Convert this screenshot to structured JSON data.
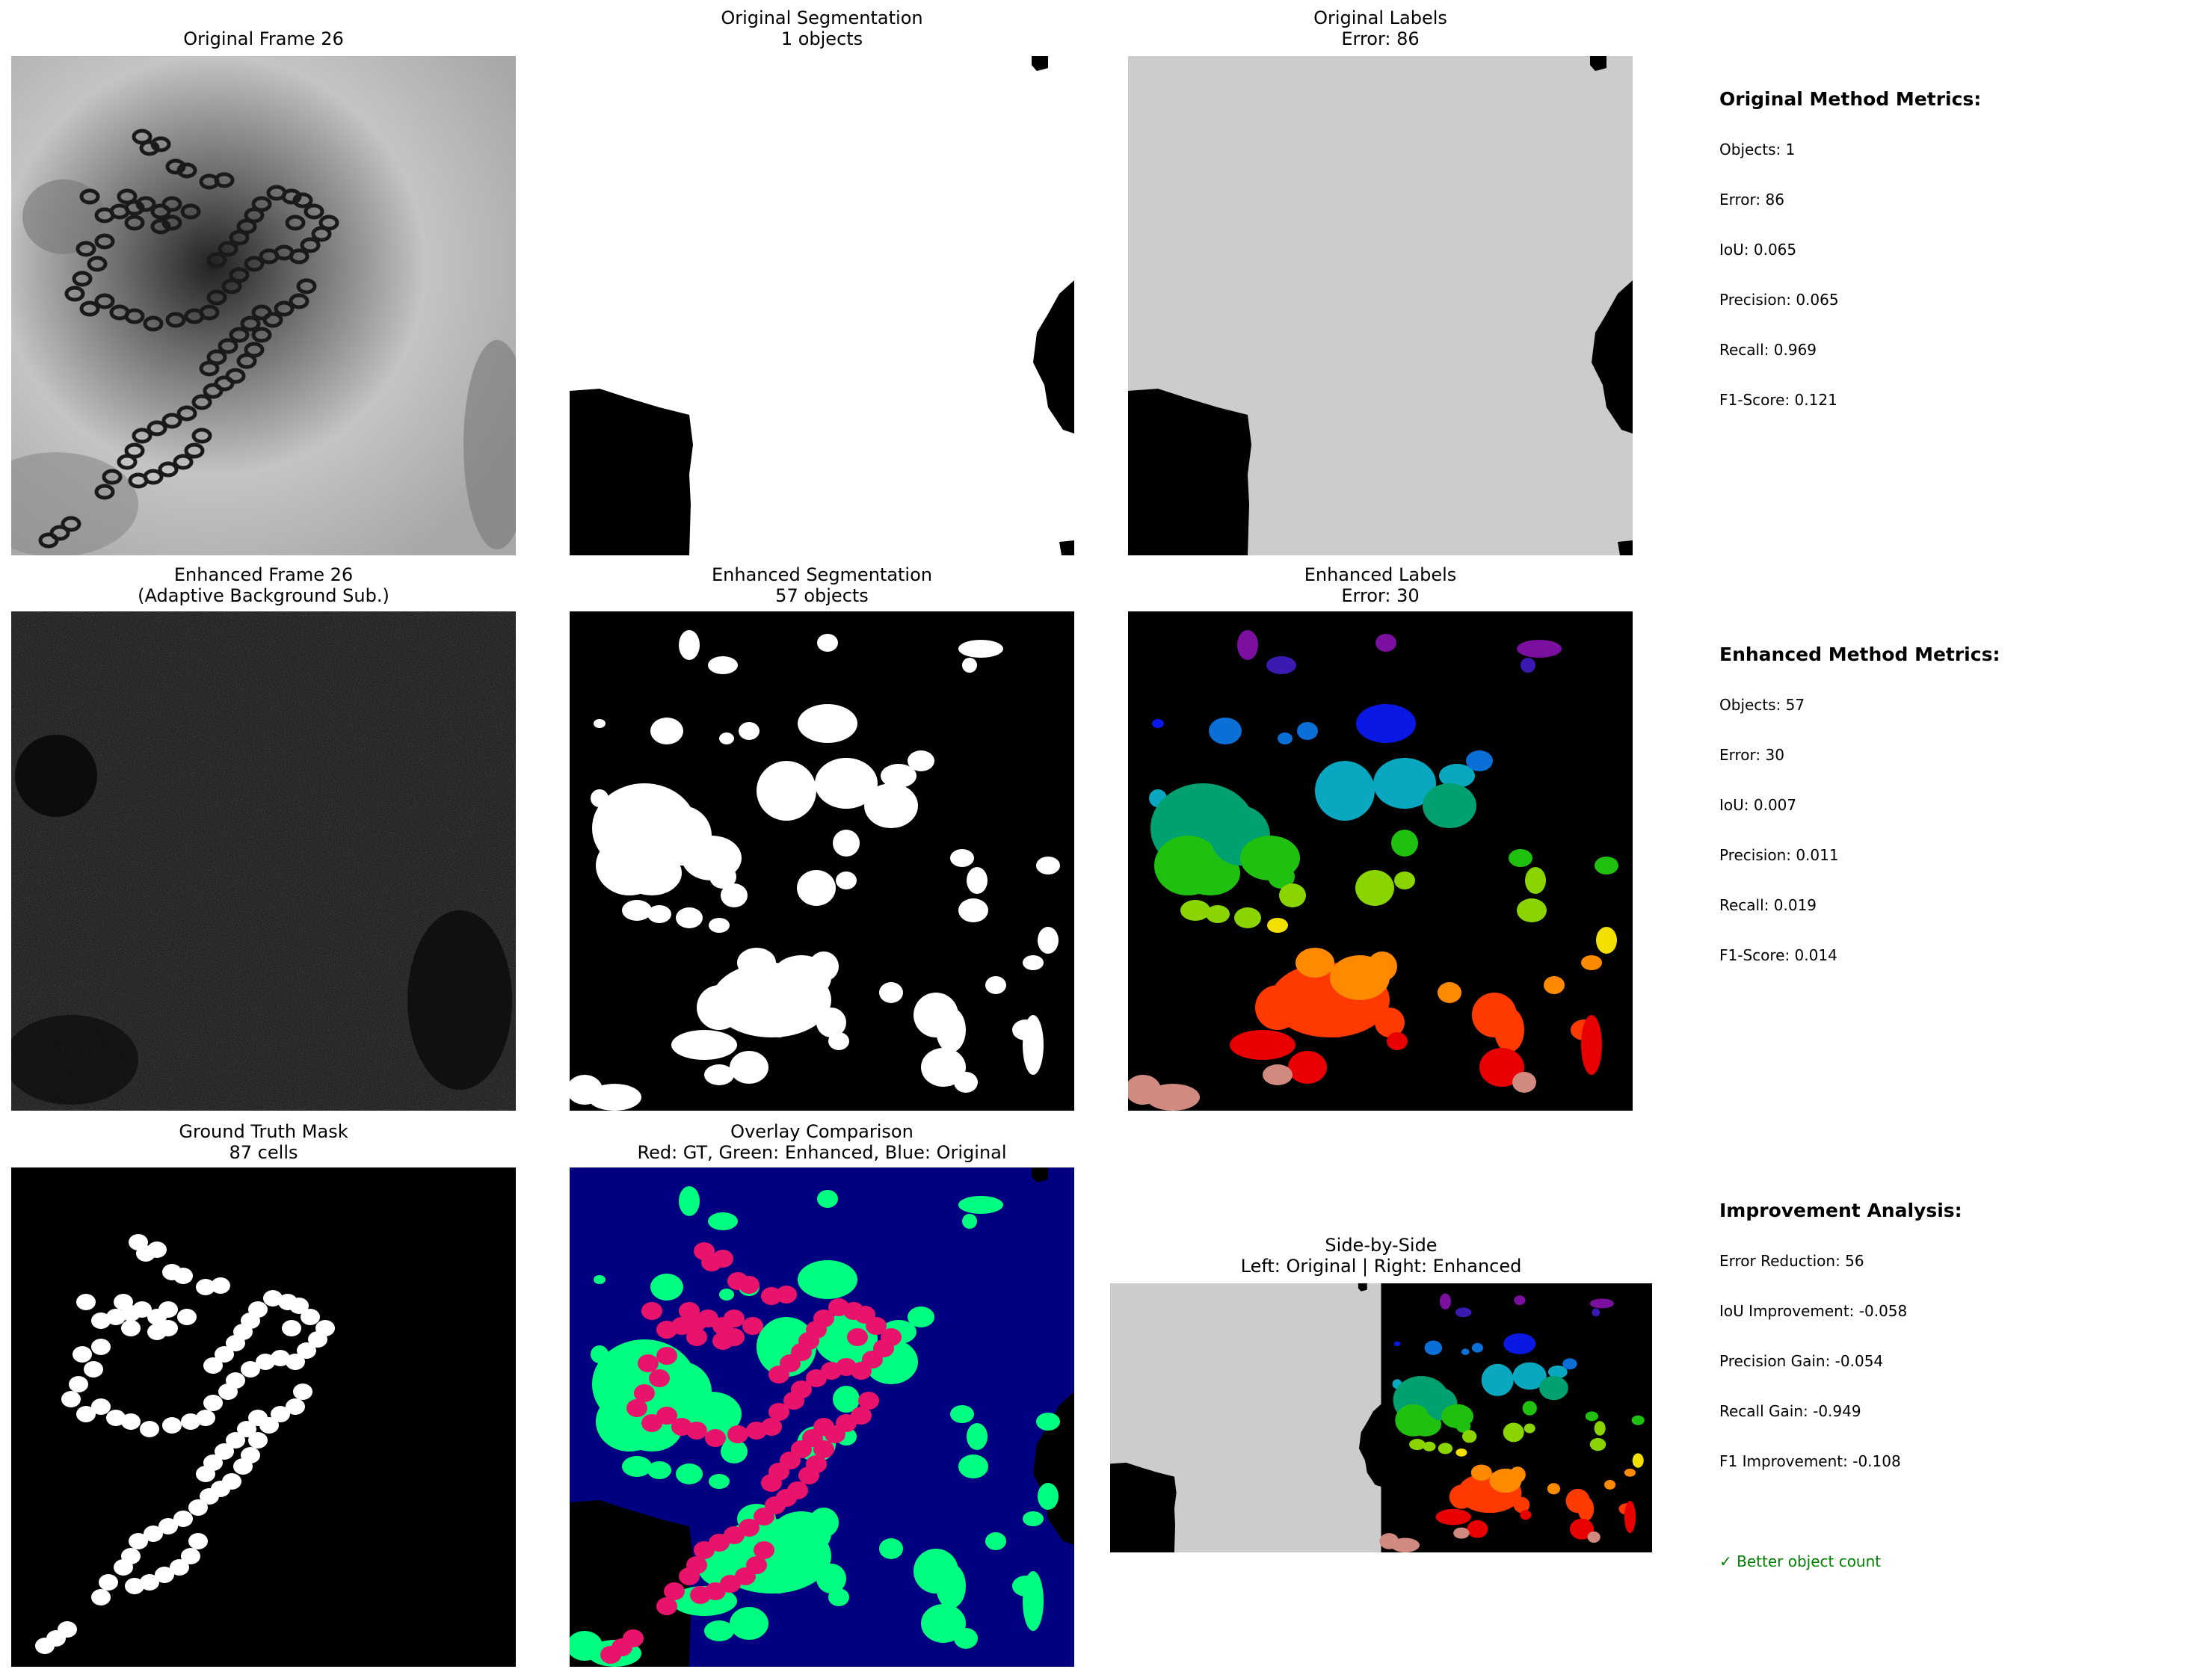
{
  "panels": {
    "original_frame": {
      "title": [
        "Original Frame 26"
      ]
    },
    "original_seg": {
      "title": [
        "Original Segmentation",
        "1 objects"
      ]
    },
    "original_labels": {
      "title": [
        "Original Labels",
        "Error: 86"
      ]
    },
    "enhanced_frame": {
      "title": [
        "Enhanced Frame 26",
        "(Adaptive Background Sub.)"
      ]
    },
    "enhanced_seg": {
      "title": [
        "Enhanced Segmentation",
        "57 objects"
      ]
    },
    "enhanced_labels": {
      "title": [
        "Enhanced Labels",
        "Error: 30"
      ]
    },
    "ground_truth": {
      "title": [
        "Ground Truth Mask",
        "87 cells"
      ]
    },
    "overlay": {
      "title": [
        "Overlay Comparison",
        "Red: GT, Green: Enhanced, Blue: Original"
      ]
    },
    "side_by_side": {
      "title": [
        "Side-by-Side",
        "Left: Original | Right: Enhanced"
      ]
    }
  },
  "original_metrics": {
    "heading": "Original Method Metrics:",
    "lines": [
      "Objects: 1",
      "Error: 86",
      "IoU: 0.065",
      "Precision: 0.065",
      "Recall: 0.969",
      "F1-Score: 0.121"
    ]
  },
  "enhanced_metrics": {
    "heading": "Enhanced Method Metrics:",
    "lines": [
      "Objects: 57",
      "Error: 30",
      "IoU: 0.007",
      "Precision: 0.011",
      "Recall: 0.019",
      "F1-Score: 0.014"
    ]
  },
  "improvement": {
    "heading": "Improvement Analysis:",
    "lines": [
      "Error Reduction: 56",
      "IoU Improvement: -0.058",
      "Precision Gain: -0.054",
      "Recall Gain: -0.949",
      "F1 Improvement: -0.108"
    ],
    "note": "✓ Better object count"
  },
  "colors": {
    "overlay_background": "#000080",
    "gt": "#e8146b",
    "enhanced": "#00ff80",
    "labels_gray": "#cccccc",
    "note_green": "#008000"
  },
  "chart_data": [
    {
      "type": "heatmap",
      "title": "Original Frame 26",
      "colormap": "gray"
    },
    {
      "type": "heatmap",
      "title": "Original Segmentation",
      "subtitle": "1 objects",
      "colormap": "binary"
    },
    {
      "type": "heatmap",
      "title": "Original Labels",
      "subtitle": "Error: 86",
      "colormap": "labels"
    },
    {
      "type": "heatmap",
      "title": "Enhanced Frame 26",
      "subtitle": "(Adaptive Background Sub.)",
      "colormap": "gray"
    },
    {
      "type": "heatmap",
      "title": "Enhanced Segmentation",
      "subtitle": "57 objects",
      "colormap": "binary"
    },
    {
      "type": "heatmap",
      "title": "Enhanced Labels",
      "subtitle": "Error: 30",
      "colormap": "labels",
      "label_colors": [
        "#7a0fa0",
        "#3a1ab0",
        "#0a18e6",
        "#0b6fd8",
        "#0aa8c0",
        "#00a070",
        "#20c010",
        "#8ad400",
        "#f2e000",
        "#ff8a00",
        "#ff3a00",
        "#e80000",
        "#d08a80"
      ]
    },
    {
      "type": "heatmap",
      "title": "Ground Truth Mask",
      "subtitle": "87 cells",
      "colormap": "binary"
    },
    {
      "type": "heatmap",
      "title": "Overlay Comparison",
      "subtitle": "Red: GT, Green: Enhanced, Blue: Original"
    },
    {
      "type": "heatmap",
      "title": "Side-by-Side",
      "subtitle": "Left: Original | Right: Enhanced"
    }
  ]
}
